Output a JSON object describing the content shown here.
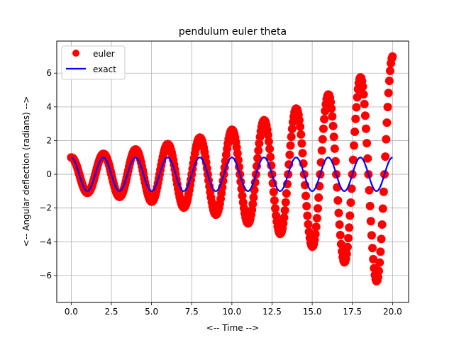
{
  "chart_data": {
    "type": "line",
    "title": "pendulum euler theta",
    "xlabel": "<-- Time -->",
    "ylabel": "<-- Angular deflection (radians) -->",
    "xlim": [
      -0.9,
      21.0
    ],
    "ylim": [
      -7.6,
      7.9
    ],
    "xticks": [
      0.0,
      2.5,
      5.0,
      7.5,
      10.0,
      12.5,
      15.0,
      17.5,
      20.0
    ],
    "xtick_labels": [
      "0.0",
      "2.5",
      "5.0",
      "7.5",
      "10.0",
      "12.5",
      "15.0",
      "17.5",
      "20.0"
    ],
    "yticks": [
      -6,
      -4,
      -2,
      0,
      2,
      4,
      6
    ],
    "ytick_labels": [
      "−6",
      "−4",
      "−2",
      "0",
      "2",
      "4",
      "6"
    ],
    "grid": true,
    "legend_position": "top-left",
    "series": [
      {
        "name": "euler",
        "style": "markers",
        "color": "#ff0000",
        "model": {
          "amplitude_start": 1.0,
          "growth_rate": 0.0972,
          "period": 2.0,
          "t_start": 0.0,
          "t_end": 20.0,
          "samples": 401
        }
      },
      {
        "name": "exact",
        "style": "line",
        "color": "#0000ff",
        "model": {
          "amplitude": 1.0,
          "period": 2.0,
          "t_start": 0.0,
          "t_end": 20.0,
          "samples": 401
        }
      }
    ]
  }
}
